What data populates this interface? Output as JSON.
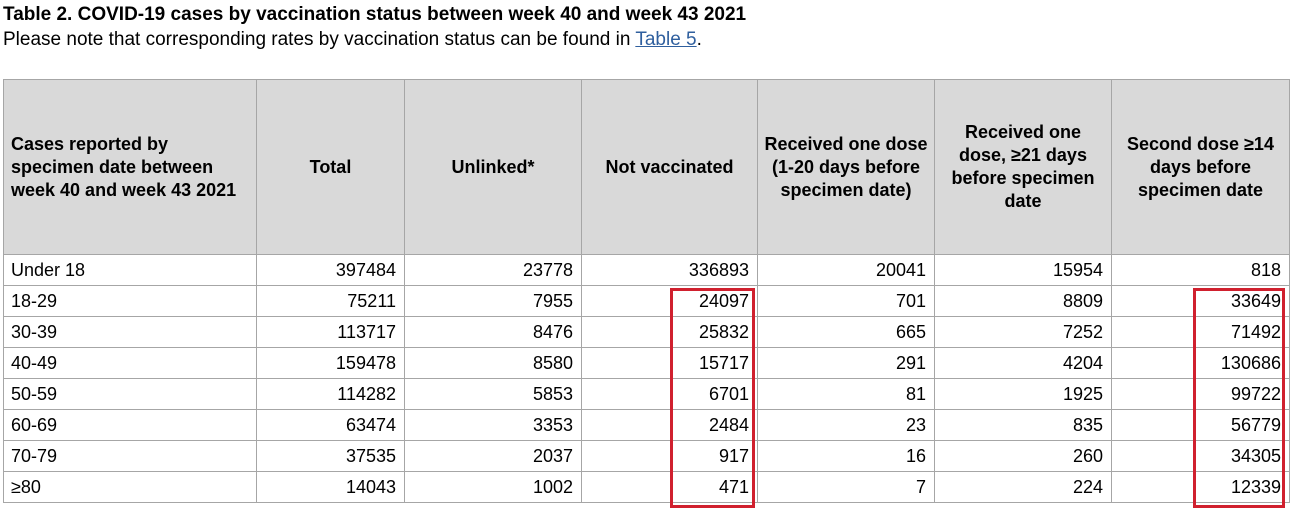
{
  "title": "Table 2. COVID-19 cases by vaccination status between week 40 and week 43 2021",
  "note": {
    "prefix": "Please note that corresponding rates by vaccination status can be found in ",
    "link": "Table 5",
    "suffix": "."
  },
  "table": {
    "headers": [
      "Cases reported by specimen date between week 40 and week 43 2021",
      "Total",
      "Unlinked*",
      "Not vaccinated",
      "Received one dose (1-20 days before specimen date)",
      "Received one dose, ≥21 days before specimen date",
      "Second dose ≥14 days before specimen date"
    ],
    "rows": [
      [
        "Under 18",
        "397484",
        "23778",
        "336893",
        "20041",
        "15954",
        "818"
      ],
      [
        "18-29",
        "75211",
        "7955",
        "24097",
        "701",
        "8809",
        "33649"
      ],
      [
        "30-39",
        "113717",
        "8476",
        "25832",
        "665",
        "7252",
        "71492"
      ],
      [
        "40-49",
        "159478",
        "8580",
        "15717",
        "291",
        "4204",
        "130686"
      ],
      [
        "50-59",
        "114282",
        "5853",
        "6701",
        "81",
        "1925",
        "99722"
      ],
      [
        "60-69",
        "63474",
        "3353",
        "2484",
        "23",
        "835",
        "56779"
      ],
      [
        "70-79",
        "37535",
        "2037",
        "917",
        "16",
        "260",
        "34305"
      ],
      [
        "≥80",
        "14043",
        "1002",
        "471",
        "7",
        "224",
        "12339"
      ]
    ]
  },
  "highlight_color": "#d0202e",
  "header_bg": "#d9d9d9"
}
